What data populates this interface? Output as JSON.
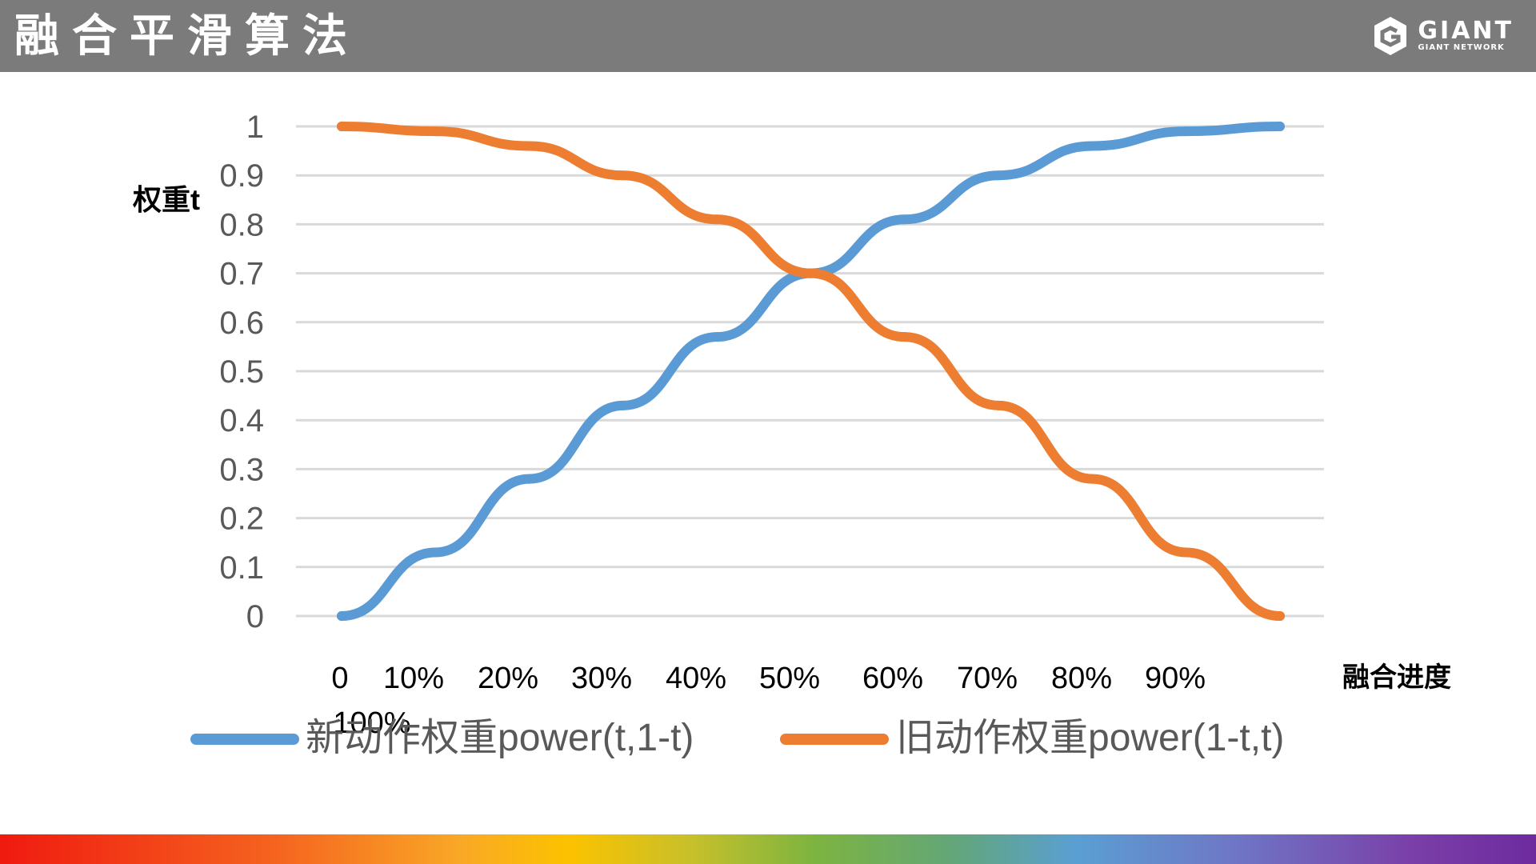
{
  "header": {
    "title": "融合平滑算法",
    "logo_main": "GIANT",
    "logo_sub": "GIANT NETWORK"
  },
  "colors": {
    "header_bg": "#7b7b7b",
    "series_new": "#5b9bd5",
    "series_old": "#ed7d31",
    "grid": "#d9d9d9",
    "tick_text": "#595959"
  },
  "chart_data": {
    "type": "line",
    "title": "",
    "ylabel": "权重t",
    "xlabel": "融合进度",
    "ylim": [
      0,
      1
    ],
    "grid": true,
    "legend_position": "bottom",
    "y_ticks": [
      "0",
      "0.1",
      "0.2",
      "0.3",
      "0.4",
      "0.5",
      "0.6",
      "0.7",
      "0.8",
      "0.9",
      "1"
    ],
    "categories": [
      "0",
      "10%",
      "20%",
      "30%",
      "40%",
      "50%",
      "60%",
      "70%",
      "80%",
      "90%",
      "100%"
    ],
    "series": [
      {
        "name": "新动作权重power(t,1-t)",
        "color": "#5b9bd5",
        "values": [
          0.0,
          0.13,
          0.28,
          0.43,
          0.57,
          0.7,
          0.81,
          0.9,
          0.96,
          0.99,
          1.0
        ]
      },
      {
        "name": "旧动作权重power(1-t,t)",
        "color": "#ed7d31",
        "values": [
          1.0,
          0.99,
          0.96,
          0.9,
          0.81,
          0.7,
          0.57,
          0.43,
          0.28,
          0.13,
          0.0
        ]
      }
    ]
  }
}
